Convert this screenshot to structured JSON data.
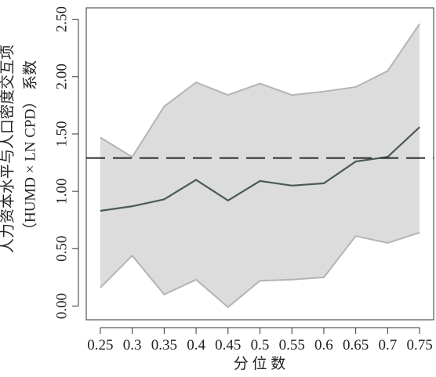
{
  "chart_data": {
    "type": "quantile",
    "y_label_line1": "人力资本水平与人口密度交互项",
    "y_label_line2": "（HUMD × LN CPD） 系数",
    "x_label": "分 位 数",
    "x": [
      0.25,
      0.3,
      0.35,
      0.4,
      0.45,
      0.5,
      0.55,
      0.6,
      0.65,
      0.7,
      0.75
    ],
    "series": [
      {
        "role": "estimate",
        "color": "#4a5a58",
        "values": [
          0.83,
          0.87,
          0.93,
          1.1,
          0.92,
          1.09,
          1.05,
          1.07,
          1.26,
          1.3,
          1.56
        ]
      },
      {
        "role": "upper",
        "color": "#b4b4b4",
        "values": [
          1.47,
          1.3,
          1.74,
          1.95,
          1.84,
          1.94,
          1.84,
          1.87,
          1.91,
          2.05,
          2.46
        ]
      },
      {
        "role": "lower",
        "color": "#b4b4b4",
        "values": [
          0.16,
          0.44,
          0.1,
          0.23,
          -0.01,
          0.22,
          0.23,
          0.25,
          0.61,
          0.55,
          0.64
        ]
      }
    ],
    "band_color": "#dcdcdc",
    "ols": 1.29,
    "ols_color": "#2a2a2a",
    "xlim": [
      0.228,
      0.772
    ],
    "ylim": [
      -0.12,
      2.6
    ],
    "xticks": [
      0.25,
      0.3,
      0.35,
      0.4,
      0.45,
      0.5,
      0.55,
      0.6,
      0.65,
      0.7,
      0.75
    ],
    "yticks": [
      {
        "value": 0,
        "label": "0.00"
      },
      {
        "value": 0.5,
        "label": "0.50"
      },
      {
        "value": 1,
        "label": "1.00"
      },
      {
        "value": 1.5,
        "label": "1.50"
      },
      {
        "value": 2,
        "label": "2.00"
      },
      {
        "value": 2.5,
        "label": "2.50"
      }
    ]
  }
}
